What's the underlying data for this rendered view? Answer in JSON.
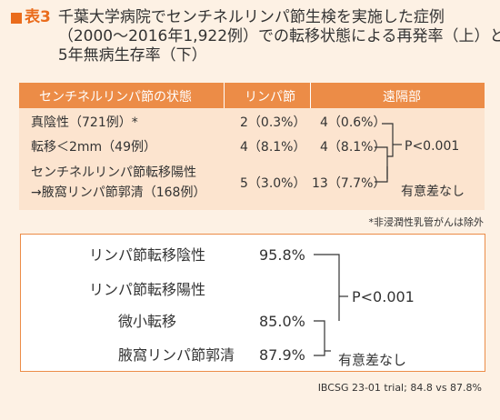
{
  "title": {
    "label": "表3",
    "line1": "千葉大学病院でセンチネルリンパ節生検を実施した症例",
    "line2": "（2000～2016年1,922例）での転移状態による再発率（上）と",
    "line3": "5年無病生存率（下）"
  },
  "table1": {
    "headers": [
      "センチネルリンパ節の状態",
      "リンパ節",
      "遠隔部"
    ],
    "rows": [
      {
        "status": "真陰性（721例）*",
        "lymph": "2（0.3%）",
        "distant": "4（0.6%）"
      },
      {
        "status": "転移＜2mm（49例）",
        "lymph": "4（8.1%）",
        "distant": "4（8.1%）"
      },
      {
        "status_line1": "センチネルリンパ節転移陽性",
        "status_line2": "→腋窩リンパ節郭清（168例）",
        "lymph": "5（3.0%）",
        "distant": "13（7.7%）"
      }
    ],
    "p_value": "P<0.001",
    "no_sig": "有意差なし"
  },
  "footnote": "*非浸潤性乳管がんは除外",
  "table2": {
    "rows": [
      {
        "label": "リンパ節転移陰性",
        "value": "95.8%"
      },
      {
        "label": "リンパ節転移陽性",
        "value": ""
      },
      {
        "label": "微小転移",
        "value": "85.0%"
      },
      {
        "label": "腋窩リンパ節郭清",
        "value": "87.9%"
      }
    ],
    "p_value": "P<0.001",
    "no_sig": "有意差なし"
  },
  "trial_note": "IBCSG 23-01 trial; 84.8 vs 87.8%",
  "colors": {
    "accent": "#ea6c1c",
    "header_bg": "#ec8c47",
    "row_bg": "#fce4cf",
    "page_bg": "#fdf1e4"
  }
}
